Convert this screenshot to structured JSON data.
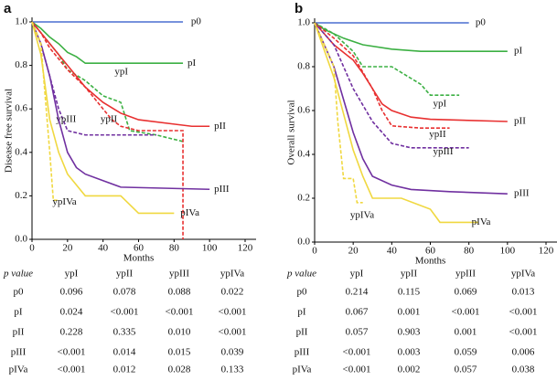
{
  "chart_data": [
    {
      "type": "line",
      "title": "a",
      "xlabel": "Months",
      "ylabel": "Disease free survival",
      "xlim": [
        0,
        120
      ],
      "ylim": [
        0,
        1.0
      ],
      "xticks": [
        0,
        20,
        40,
        60,
        80,
        100,
        120
      ],
      "yticks": [
        {
          "value": 0,
          "label": "0.0"
        },
        0.2,
        0.4,
        0.6,
        0.8,
        {
          "value": 1,
          "label": "1.0"
        }
      ],
      "series": [
        {
          "name": "p0",
          "color": "#4a6fd0",
          "dashed": false,
          "x": [
            0,
            85
          ],
          "values": [
            1.0,
            1.0
          ]
        },
        {
          "name": "pI",
          "color": "#3cb043",
          "dashed": false,
          "x": [
            0,
            5,
            10,
            15,
            20,
            25,
            30,
            85
          ],
          "values": [
            1.0,
            0.97,
            0.93,
            0.9,
            0.86,
            0.84,
            0.81,
            0.81
          ]
        },
        {
          "name": "ypI",
          "color": "#3cb043",
          "dashed": true,
          "x": [
            0,
            5,
            10,
            15,
            20,
            30,
            40,
            50,
            55,
            70,
            85
          ],
          "values": [
            1.0,
            0.95,
            0.9,
            0.85,
            0.78,
            0.73,
            0.66,
            0.63,
            0.5,
            0.48,
            0.45
          ]
        },
        {
          "name": "pII",
          "color": "#e83030",
          "dashed": false,
          "x": [
            0,
            5,
            10,
            15,
            20,
            25,
            30,
            40,
            50,
            60,
            80,
            90,
            100
          ],
          "values": [
            1.0,
            0.95,
            0.9,
            0.85,
            0.8,
            0.75,
            0.7,
            0.63,
            0.58,
            0.55,
            0.53,
            0.52,
            0.52
          ]
        },
        {
          "name": "ypII",
          "color": "#e83030",
          "dashed": true,
          "x": [
            0,
            5,
            10,
            20,
            30,
            40,
            45,
            50,
            60,
            85,
            85
          ],
          "values": [
            1.0,
            0.95,
            0.88,
            0.78,
            0.7,
            0.6,
            0.55,
            0.52,
            0.5,
            0.5,
            0.0
          ]
        },
        {
          "name": "ypIII",
          "color": "#7030a0",
          "dashed": true,
          "x": [
            0,
            5,
            10,
            15,
            20,
            30,
            70
          ],
          "values": [
            1.0,
            0.9,
            0.75,
            0.6,
            0.5,
            0.48,
            0.48
          ]
        },
        {
          "name": "pIII",
          "color": "#7030a0",
          "dashed": false,
          "x": [
            0,
            5,
            10,
            15,
            20,
            25,
            30,
            40,
            50,
            100
          ],
          "values": [
            1.0,
            0.9,
            0.75,
            0.55,
            0.4,
            0.33,
            0.3,
            0.27,
            0.24,
            0.23
          ]
        },
        {
          "name": "ypIVa",
          "color": "#f0d840",
          "dashed": true,
          "x": [
            0,
            5,
            8,
            10,
            12,
            15
          ],
          "values": [
            1.0,
            0.9,
            0.6,
            0.4,
            0.18,
            0.18
          ]
        },
        {
          "name": "pIVa",
          "color": "#f0d840",
          "dashed": false,
          "x": [
            0,
            5,
            10,
            15,
            20,
            30,
            50,
            60,
            80
          ],
          "values": [
            1.0,
            0.85,
            0.55,
            0.4,
            0.3,
            0.2,
            0.2,
            0.12,
            0.12
          ]
        }
      ]
    },
    {
      "type": "line",
      "title": "b",
      "xlabel": "Months",
      "ylabel": "Overall survival",
      "xlim": [
        0,
        120
      ],
      "ylim": [
        0,
        1.0
      ],
      "xticks": [
        0,
        20,
        40,
        60,
        80,
        100,
        120
      ],
      "yticks": [
        {
          "value": 0,
          "label": "0.0"
        },
        0.2,
        0.4,
        0.6,
        0.8,
        {
          "value": 1,
          "label": "1.0"
        }
      ],
      "series": [
        {
          "name": "p0",
          "color": "#4a6fd0",
          "dashed": false,
          "x": [
            0,
            80
          ],
          "values": [
            1.0,
            1.0
          ]
        },
        {
          "name": "pI",
          "color": "#3cb043",
          "dashed": false,
          "x": [
            0,
            5,
            15,
            25,
            40,
            55,
            100
          ],
          "values": [
            1.0,
            0.97,
            0.93,
            0.9,
            0.88,
            0.87,
            0.87
          ]
        },
        {
          "name": "ypI",
          "color": "#3cb043",
          "dashed": true,
          "x": [
            0,
            10,
            20,
            25,
            40,
            55,
            60,
            75
          ],
          "values": [
            1.0,
            0.95,
            0.87,
            0.8,
            0.8,
            0.72,
            0.67,
            0.67
          ]
        },
        {
          "name": "pII",
          "color": "#e83030",
          "dashed": false,
          "x": [
            0,
            5,
            10,
            20,
            25,
            30,
            35,
            40,
            50,
            60,
            100
          ],
          "values": [
            1.0,
            0.95,
            0.9,
            0.83,
            0.77,
            0.7,
            0.63,
            0.6,
            0.57,
            0.56,
            0.55
          ]
        },
        {
          "name": "ypII",
          "color": "#e83030",
          "dashed": true,
          "x": [
            0,
            10,
            20,
            30,
            35,
            40,
            55,
            70
          ],
          "values": [
            1.0,
            0.93,
            0.85,
            0.7,
            0.6,
            0.53,
            0.52,
            0.52
          ]
        },
        {
          "name": "ypIII",
          "color": "#7030a0",
          "dashed": true,
          "x": [
            0,
            10,
            15,
            20,
            30,
            40,
            50,
            80
          ],
          "values": [
            1.0,
            0.9,
            0.8,
            0.7,
            0.55,
            0.45,
            0.43,
            0.43
          ]
        },
        {
          "name": "pIII",
          "color": "#7030a0",
          "dashed": false,
          "x": [
            0,
            5,
            10,
            15,
            20,
            25,
            30,
            40,
            50,
            70,
            100
          ],
          "values": [
            1.0,
            0.9,
            0.8,
            0.65,
            0.5,
            0.38,
            0.3,
            0.26,
            0.24,
            0.23,
            0.22
          ]
        },
        {
          "name": "ypIVa",
          "color": "#f0d840",
          "dashed": true,
          "x": [
            0,
            10,
            12,
            15,
            20,
            22,
            25
          ],
          "values": [
            1.0,
            0.8,
            0.55,
            0.29,
            0.29,
            0.18,
            0.18
          ]
        },
        {
          "name": "pIVa",
          "color": "#f0d840",
          "dashed": false,
          "x": [
            0,
            10,
            20,
            25,
            30,
            45,
            60,
            65,
            85
          ],
          "values": [
            1.0,
            0.75,
            0.42,
            0.3,
            0.2,
            0.2,
            0.15,
            0.09,
            0.09
          ]
        }
      ]
    }
  ],
  "tables": [
    {
      "header": [
        "p value",
        "ypI",
        "ypII",
        "ypIII",
        "ypIVa"
      ],
      "rows": [
        [
          "p0",
          "0.096",
          "0.078",
          "0.088",
          "0.022"
        ],
        [
          "pI",
          "0.024",
          "<0.001",
          "<0.001",
          "<0.001"
        ],
        [
          "pII",
          "0.228",
          "0.335",
          "0.010",
          "<0.001"
        ],
        [
          "pIII",
          "<0.001",
          "0.014",
          "0.015",
          "0.039"
        ],
        [
          "pIVa",
          "<0.001",
          "0.012",
          "0.028",
          "0.133"
        ]
      ]
    },
    {
      "header": [
        "p value",
        "ypI",
        "ypII",
        "ypIII",
        "ypIVa"
      ],
      "rows": [
        [
          "p0",
          "0.214",
          "0.115",
          "0.069",
          "0.013"
        ],
        [
          "pI",
          "0.067",
          "0.001",
          "<0.001",
          "<0.001"
        ],
        [
          "pII",
          "0.057",
          "0.903",
          "0.001",
          "<0.001"
        ],
        [
          "pIII",
          "<0.001",
          "0.003",
          "0.059",
          "0.006"
        ],
        [
          "pIVa",
          "<0.001",
          "0.002",
          "0.057",
          "0.038"
        ]
      ]
    }
  ]
}
